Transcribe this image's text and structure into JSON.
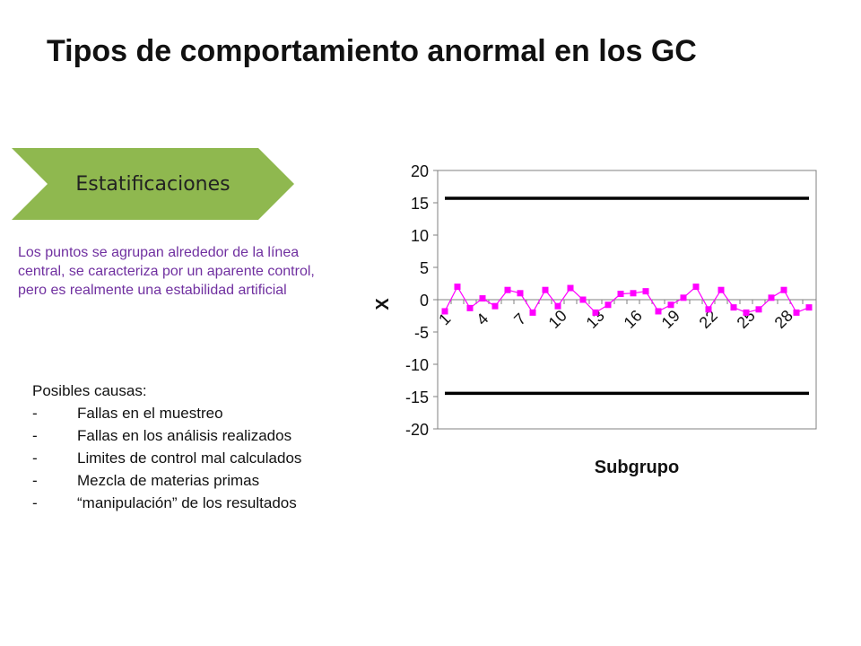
{
  "slide": {
    "title": "Tipos de comportamiento anormal en los GC",
    "section_label": "Estatificaciones",
    "section_color": "#8fb84f",
    "description": "Los puntos se agrupan alrededor de la línea central, se caracteriza por un aparente control, pero es realmente una estabilidad artificial",
    "description_color": "#7030a0",
    "causes_heading": "Posibles causas:",
    "causes": [
      "Fallas en el muestreo",
      "Fallas en los análisis realizados",
      "Limites de control mal calculados",
      "Mezcla de materias primas",
      " “manipulación” de los resultados"
    ],
    "bullet": "-"
  },
  "chart_data": {
    "type": "line",
    "xlabel": "Subgrupo",
    "ylabel": "X",
    "ylim": [
      -20,
      20
    ],
    "yticks": [
      20,
      15,
      10,
      5,
      0,
      -5,
      -10,
      -15,
      -20
    ],
    "xtick_labels": [
      "1",
      "4",
      "7",
      "10",
      "13",
      "16",
      "19",
      "22",
      "25",
      "28"
    ],
    "x": [
      1,
      2,
      3,
      4,
      5,
      6,
      7,
      8,
      9,
      10,
      11,
      12,
      13,
      14,
      15,
      16,
      17,
      18,
      19,
      20,
      21,
      22,
      23,
      24,
      25,
      26,
      27,
      28,
      29,
      30
    ],
    "series": [
      {
        "values": [
          -1.8,
          2.0,
          -1.3,
          0.2,
          -1.0,
          1.5,
          1.0,
          -2.0,
          1.5,
          -1.0,
          1.8,
          0.0,
          -2.0,
          -0.8,
          0.9,
          1.0,
          1.3,
          -1.8,
          -0.8,
          0.3,
          2.0,
          -1.5,
          1.5,
          -1.2,
          -2.0,
          -1.5,
          0.3,
          1.5,
          -2.0,
          -1.2
        ],
        "color": "#ff00ff"
      }
    ],
    "control_limits": [
      15.7,
      -14.5
    ],
    "limit_color": "#000000",
    "grid": false
  }
}
